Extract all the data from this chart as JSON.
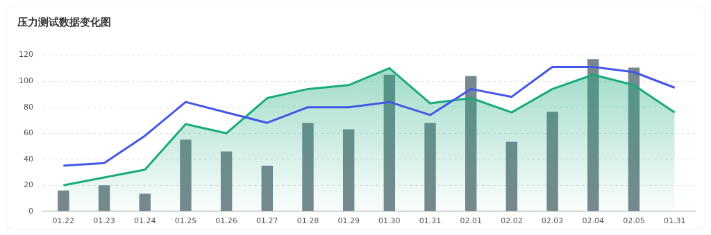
{
  "chart_data": {
    "type": "bar",
    "title": "压力测试数据变化图",
    "categories": [
      "01.22",
      "01.23",
      "01.24",
      "01.25",
      "01.26",
      "01.27",
      "01.28",
      "01.29",
      "01.30",
      "01.31",
      "02.01",
      "02.02",
      "02.03",
      "02.04",
      "02.05",
      "01.31"
    ],
    "series": [
      {
        "color": "#78888e",
        "values": [
          16,
          20,
          13.5,
          55,
          46,
          35,
          68,
          63,
          105,
          68,
          104,
          53.5,
          76.5,
          117,
          110.5,
          null
        ]
      },
      {
        "type": "line",
        "color": "#4356e8",
        "values": [
          35,
          37,
          58,
          84,
          76,
          68,
          80,
          80,
          84,
          74,
          94,
          88,
          111,
          111,
          107,
          95
        ]
      },
      {
        "type": "area",
        "color": "#1aaa7c",
        "values": [
          20,
          26,
          32,
          67,
          60,
          87,
          94,
          97,
          110,
          83,
          87,
          76,
          94,
          105,
          97,
          76
        ]
      }
    ],
    "ylim": [
      0,
      120
    ],
    "yticks": [
      0,
      20,
      40,
      60,
      80,
      100,
      120
    ],
    "grid": "y",
    "legend": false,
    "marker": "none",
    "line_style": "solid"
  }
}
